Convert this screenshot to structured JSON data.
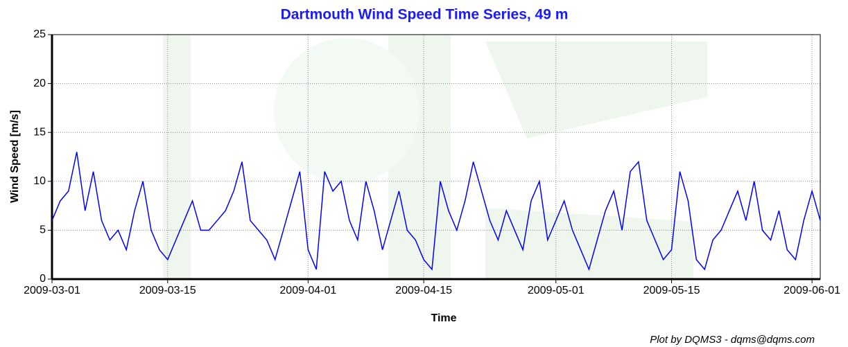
{
  "chart_data": {
    "type": "line",
    "title": "Dartmouth Wind Speed Time Series, 49 m",
    "xlabel": "Time",
    "ylabel": "Wind Speed [m/s]",
    "credit": "Plot by DQMS3 - dqms@dqms.com",
    "x": [
      "2009-03-01",
      "2009-03-02",
      "2009-03-03",
      "2009-03-04",
      "2009-03-05",
      "2009-03-06",
      "2009-03-07",
      "2009-03-08",
      "2009-03-09",
      "2009-03-10",
      "2009-03-11",
      "2009-03-12",
      "2009-03-13",
      "2009-03-14",
      "2009-03-15",
      "2009-03-16",
      "2009-03-17",
      "2009-03-18",
      "2009-03-19",
      "2009-03-20",
      "2009-03-21",
      "2009-03-22",
      "2009-03-23",
      "2009-03-24",
      "2009-03-25",
      "2009-03-26",
      "2009-03-27",
      "2009-03-28",
      "2009-03-29",
      "2009-03-30",
      "2009-03-31",
      "2009-04-01",
      "2009-04-02",
      "2009-04-03",
      "2009-04-04",
      "2009-04-05",
      "2009-04-06",
      "2009-04-07",
      "2009-04-08",
      "2009-04-09",
      "2009-04-10",
      "2009-04-11",
      "2009-04-12",
      "2009-04-13",
      "2009-04-14",
      "2009-04-15",
      "2009-04-16",
      "2009-04-17",
      "2009-04-18",
      "2009-04-19",
      "2009-04-20",
      "2009-04-21",
      "2009-04-22",
      "2009-04-23",
      "2009-04-24",
      "2009-04-25",
      "2009-04-26",
      "2009-04-27",
      "2009-04-28",
      "2009-04-29",
      "2009-04-30",
      "2009-05-01",
      "2009-05-02",
      "2009-05-03",
      "2009-05-04",
      "2009-05-05",
      "2009-05-06",
      "2009-05-07",
      "2009-05-08",
      "2009-05-09",
      "2009-05-10",
      "2009-05-11",
      "2009-05-12",
      "2009-05-13",
      "2009-05-14",
      "2009-05-15",
      "2009-05-16",
      "2009-05-17",
      "2009-05-18",
      "2009-05-19",
      "2009-05-20",
      "2009-05-21",
      "2009-05-22",
      "2009-05-23",
      "2009-05-24",
      "2009-05-25",
      "2009-05-26",
      "2009-05-27",
      "2009-05-28",
      "2009-05-29",
      "2009-05-30",
      "2009-05-31",
      "2009-06-01",
      "2009-06-02"
    ],
    "series": [
      {
        "name": "Wind Speed",
        "color": "#0000ff",
        "values": [
          6,
          8,
          9,
          13,
          7,
          11,
          6,
          4,
          5,
          3,
          7,
          10,
          5,
          3,
          2,
          4,
          6,
          8,
          5,
          5,
          6,
          7,
          9,
          12,
          6,
          5,
          4,
          2,
          5,
          8,
          11,
          3,
          1,
          11,
          9,
          10,
          6,
          4,
          10,
          7,
          3,
          6,
          9,
          5,
          4,
          2,
          1,
          10,
          7,
          5,
          8,
          12,
          9,
          6,
          4,
          7,
          5,
          3,
          8,
          10,
          4,
          6,
          8,
          5,
          3,
          1,
          4,
          7,
          9,
          5,
          11,
          12,
          6,
          4,
          2,
          3,
          11,
          8,
          2,
          1,
          4,
          5,
          7,
          9,
          6,
          10,
          5,
          4,
          7,
          3,
          2,
          6,
          9,
          6
        ]
      }
    ],
    "xlim": [
      "2009-03-01",
      "2009-06-02"
    ],
    "xticks": [
      "2009-03-01",
      "2009-03-15",
      "2009-04-01",
      "2009-04-15",
      "2009-05-01",
      "2009-05-15",
      "2009-06-01"
    ],
    "ylim": [
      0,
      25
    ],
    "yticks": [
      0,
      5,
      10,
      15,
      20,
      25
    ],
    "grid": true
  }
}
